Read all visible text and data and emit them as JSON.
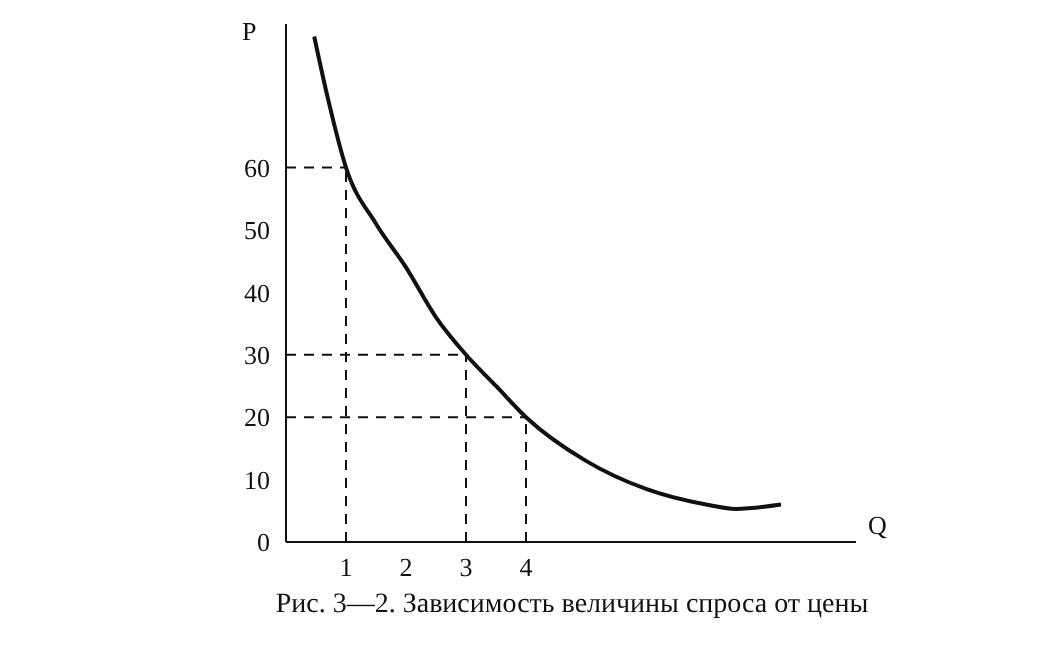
{
  "chart_data": {
    "type": "line",
    "title": "Рис. 3—2. Зависимость величины спроса от цены",
    "xlabel": "Q",
    "ylabel": "P",
    "xlim": [
      0,
      9.5
    ],
    "ylim": [
      0,
      83
    ],
    "xticks": [
      1,
      2,
      3,
      4
    ],
    "yticks": [
      0,
      10,
      20,
      30,
      40,
      50,
      60
    ],
    "grid": false,
    "legend": false,
    "marker": "none",
    "line_style": "solid",
    "series": [
      {
        "color": "#111111",
        "x": [
          0.47,
          0.7,
          1,
          1.5,
          2,
          2.5,
          3,
          3.5,
          4,
          5,
          6,
          7,
          7.5,
          8.25
        ],
        "values": [
          81,
          71,
          60,
          51,
          44,
          36,
          30,
          25,
          20,
          13,
          8.5,
          6,
          5.3,
          6
        ]
      }
    ],
    "ref_lines": [
      {
        "axis": "x",
        "value": 1,
        "line_style": "dashed",
        "color": "#111111"
      },
      {
        "axis": "x",
        "value": 3,
        "line_style": "dashed",
        "color": "#111111"
      },
      {
        "axis": "x",
        "value": 4,
        "line_style": "dashed",
        "color": "#111111"
      },
      {
        "axis": "y",
        "value": 60,
        "line_style": "dashed",
        "color": "#111111"
      },
      {
        "axis": "y",
        "value": 30,
        "line_style": "dashed",
        "color": "#111111"
      },
      {
        "axis": "y",
        "value": 20,
        "line_style": "dashed",
        "color": "#111111"
      }
    ]
  }
}
